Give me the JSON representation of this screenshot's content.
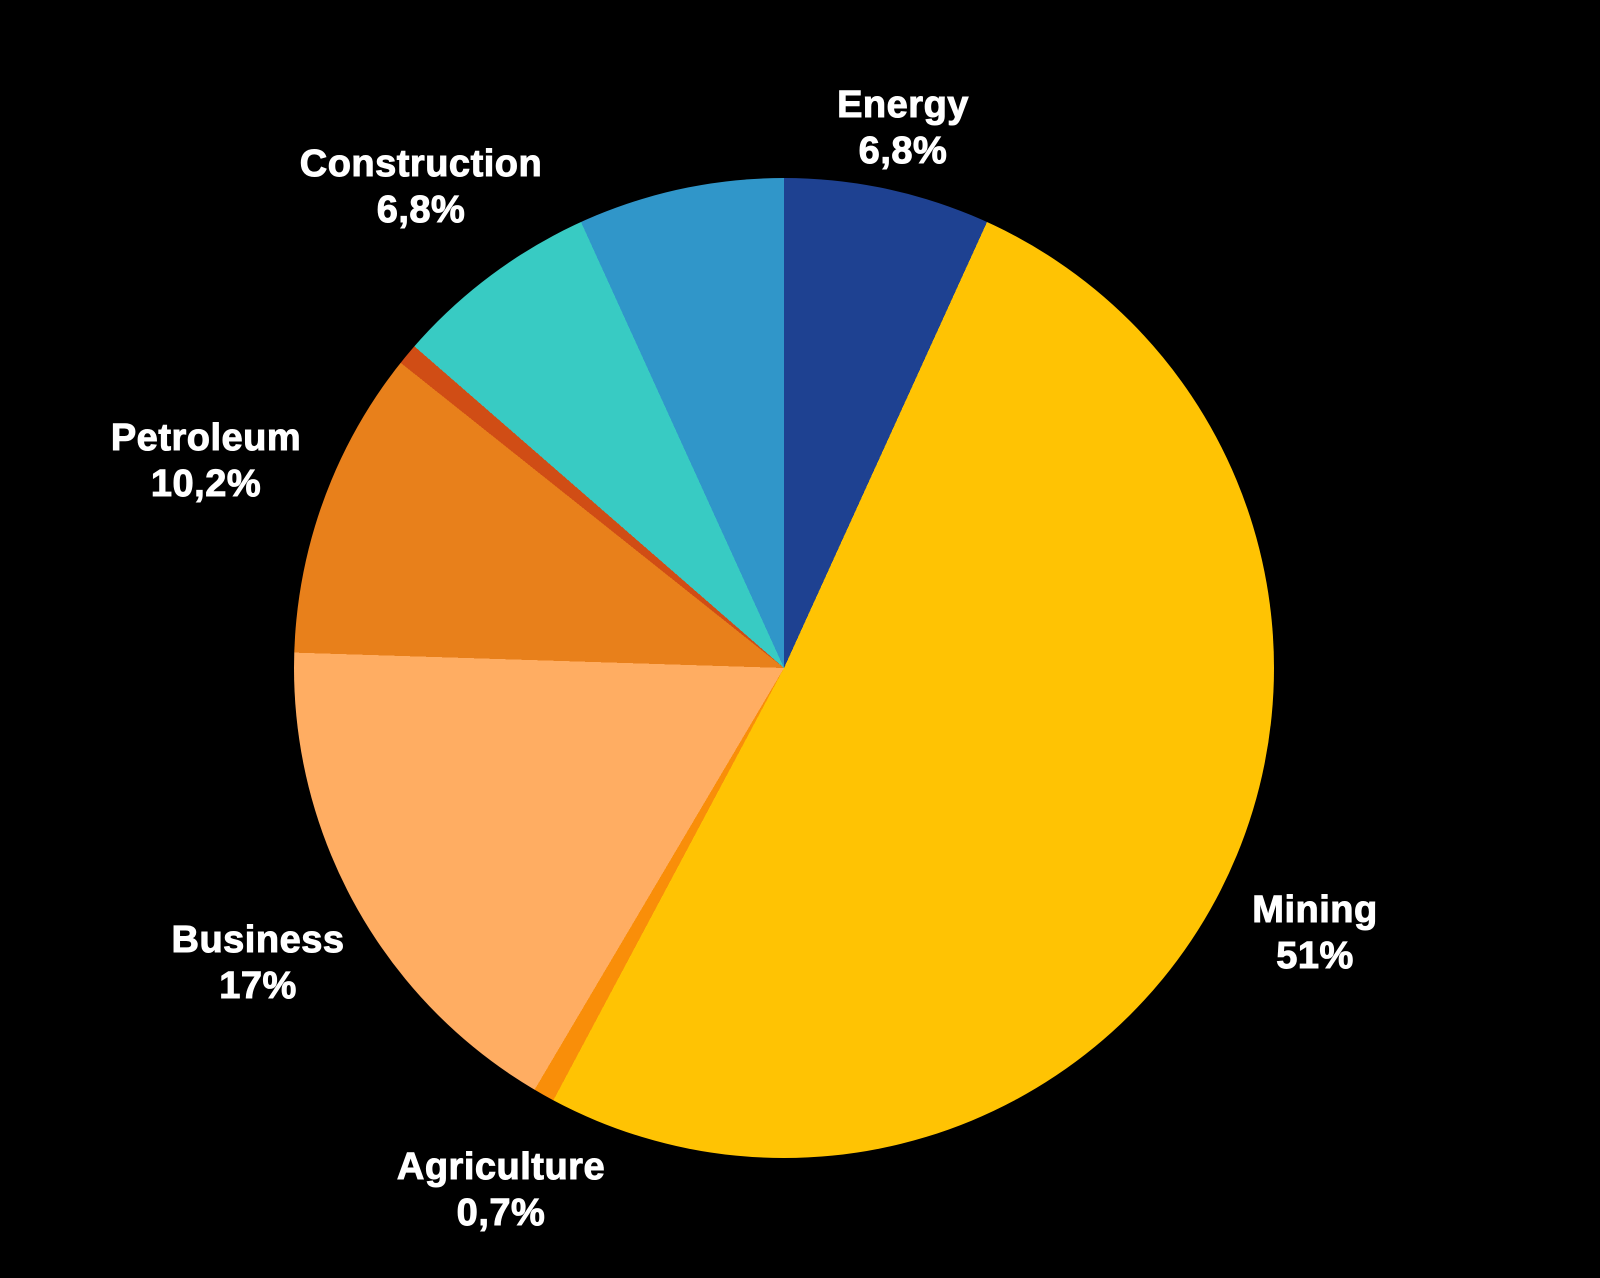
{
  "colors": {
    "background": "#000000",
    "label_text": "#FFFFFF"
  },
  "chart_data": {
    "type": "pie",
    "title": "",
    "start_angle_deg": 0,
    "direction": "clockwise",
    "legend_position": "none",
    "labels_style": "outside, name above percent value, decimal comma",
    "slices": [
      {
        "label": "Energy",
        "value_pct": 6.8,
        "display": "6,8%",
        "color": "#1E4191",
        "labeled": true
      },
      {
        "label": "Mining",
        "value_pct": 51,
        "display": "51%",
        "color": "#FFC303",
        "labeled": true
      },
      {
        "label": "Agriculture",
        "value_pct": 0.7,
        "display": "0,7%",
        "color": "#F98E09",
        "labeled": true
      },
      {
        "label": "Business",
        "value_pct": 17,
        "display": "17%",
        "color": "#FFAD62",
        "labeled": true
      },
      {
        "label": "Petroleum",
        "value_pct": 10.2,
        "display": "10,2%",
        "color": "#E8801B",
        "labeled": true
      },
      {
        "label": "",
        "value_pct": 0.7,
        "display": "",
        "color": "#D04D15",
        "labeled": false
      },
      {
        "label": "Construction",
        "value_pct": 6.8,
        "display": "6,8%",
        "color": "#38CBC3",
        "labeled": true
      },
      {
        "label": "",
        "value_pct": 6.8,
        "display": "",
        "color": "#3096C9",
        "labeled": false
      }
    ]
  }
}
